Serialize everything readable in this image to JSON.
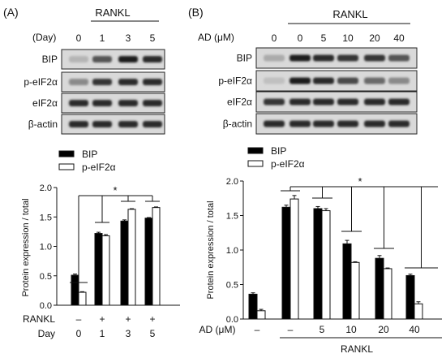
{
  "figure": {
    "panel_a": {
      "label": "(A)",
      "blot": {
        "day_header": "(Day)",
        "treatment_header": "RANKL",
        "lane_labels": [
          "0",
          "1",
          "3",
          "5"
        ],
        "rows": [
          {
            "label": "BIP",
            "intensity": [
              0.25,
              0.7,
              0.95,
              0.9
            ]
          },
          {
            "label": "p-eIF2α",
            "intensity": [
              0.45,
              0.85,
              0.9,
              0.9
            ]
          },
          {
            "label": "eIF2α",
            "intensity": [
              0.9,
              0.9,
              0.9,
              0.9
            ]
          },
          {
            "label": "β-actin",
            "intensity": [
              0.9,
              0.9,
              0.9,
              0.9
            ]
          }
        ]
      },
      "bottom_rows": [
        {
          "label": "RANKL",
          "values": [
            "–",
            "+",
            "+",
            "+"
          ]
        },
        {
          "label": "Day",
          "values": [
            "0",
            "1",
            "3",
            "5"
          ]
        }
      ],
      "significance": "*"
    },
    "panel_b": {
      "label": "(B)",
      "blot": {
        "treatment_header": "RANKL",
        "ad_header": "AD (μM)",
        "lane_labels": [
          "0",
          "0",
          "5",
          "10",
          "20",
          "40"
        ],
        "rows": [
          {
            "label": "BIP",
            "intensity": [
              0.3,
              0.95,
              0.9,
              0.85,
              0.85,
              0.7
            ]
          },
          {
            "label": "p-eIF2α",
            "intensity": [
              0.2,
              0.95,
              0.9,
              0.75,
              0.6,
              0.45
            ]
          },
          {
            "label": "eIF2α",
            "intensity": [
              0.85,
              0.9,
              0.9,
              0.9,
              0.9,
              0.9
            ]
          },
          {
            "label": "β-actin",
            "intensity": [
              0.9,
              0.9,
              0.9,
              0.9,
              0.9,
              0.9
            ]
          }
        ]
      },
      "bottom_rows": [
        {
          "label": "AD (μM)",
          "values": [
            "–",
            "–",
            "5",
            "10",
            "20",
            "40"
          ]
        }
      ],
      "group_label": "RANKL",
      "significance": "*"
    }
  },
  "chart_data": [
    {
      "type": "bar",
      "panel": "A",
      "categories": [
        "0",
        "1",
        "3",
        "5"
      ],
      "series": [
        {
          "name": "BIP",
          "values": [
            0.51,
            1.22,
            1.43,
            1.48
          ],
          "errors": [
            0.02,
            0.02,
            0.02,
            0.01
          ],
          "color": "#000000"
        },
        {
          "name": "p-eIF2α",
          "values": [
            0.22,
            1.18,
            1.63,
            1.66
          ],
          "errors": [
            0.01,
            0.02,
            0.01,
            0.01
          ],
          "color": "#ffffff"
        }
      ],
      "xlabel": "",
      "ylabel": "Protein expression / total",
      "ylim": [
        0,
        2.0
      ],
      "yticks": [
        "0.0",
        "0.5",
        "1.0",
        "1.5",
        "2.0"
      ],
      "legend": "top-left",
      "grid": false
    },
    {
      "type": "bar",
      "panel": "B",
      "categories": [
        "–",
        "0",
        "5",
        "10",
        "20",
        "40"
      ],
      "series": [
        {
          "name": "BIP",
          "values": [
            0.36,
            1.62,
            1.6,
            1.09,
            0.88,
            0.63
          ],
          "errors": [
            0.02,
            0.03,
            0.03,
            0.05,
            0.04,
            0.02
          ],
          "color": "#000000"
        },
        {
          "name": "p-eIF2α",
          "values": [
            0.12,
            1.74,
            1.57,
            0.82,
            0.73,
            0.22
          ],
          "errors": [
            0.02,
            0.05,
            0.03,
            0.01,
            0.01,
            0.03
          ],
          "color": "#ffffff"
        }
      ],
      "xlabel": "",
      "ylabel": "Protein expression / total",
      "ylim": [
        0,
        2.0
      ],
      "yticks": [
        "0.0",
        "0.5",
        "1.0",
        "1.5",
        "2.0"
      ],
      "legend": "top-left",
      "grid": false
    }
  ]
}
